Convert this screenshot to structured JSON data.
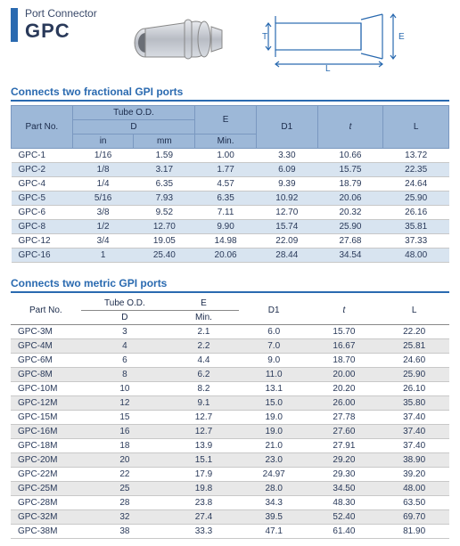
{
  "header": {
    "subtitle": "Port Connector",
    "title": "GPC",
    "bar_color": "#2a6ab0"
  },
  "diagram": {
    "labels": {
      "T": "T",
      "E": "E",
      "L": "L",
      "D1": "D1"
    }
  },
  "table1": {
    "title": "Connects two fractional GPI ports",
    "columns": {
      "part": "Part No.",
      "tube_od": "Tube O.D.",
      "D": "D",
      "in": "in",
      "mm": "mm",
      "E": "E",
      "Emin": "Min.",
      "D1": "D1",
      "t": "t",
      "L": "L"
    },
    "rows": [
      {
        "part": "GPC-1",
        "in": "1/16",
        "mm": "1.59",
        "e": "1.00",
        "d1": "3.30",
        "t": "10.66",
        "l": "13.72"
      },
      {
        "part": "GPC-2",
        "in": "1/8",
        "mm": "3.17",
        "e": "1.77",
        "d1": "6.09",
        "t": "15.75",
        "l": "22.35"
      },
      {
        "part": "GPC-4",
        "in": "1/4",
        "mm": "6.35",
        "e": "4.57",
        "d1": "9.39",
        "t": "18.79",
        "l": "24.64"
      },
      {
        "part": "GPC-5",
        "in": "5/16",
        "mm": "7.93",
        "e": "6.35",
        "d1": "10.92",
        "t": "20.06",
        "l": "25.90"
      },
      {
        "part": "GPC-6",
        "in": "3/8",
        "mm": "9.52",
        "e": "7.11",
        "d1": "12.70",
        "t": "20.32",
        "l": "26.16"
      },
      {
        "part": "GPC-8",
        "in": "1/2",
        "mm": "12.70",
        "e": "9.90",
        "d1": "15.74",
        "t": "25.90",
        "l": "35.81"
      },
      {
        "part": "GPC-12",
        "in": "3/4",
        "mm": "19.05",
        "e": "14.98",
        "d1": "22.09",
        "t": "27.68",
        "l": "37.33"
      },
      {
        "part": "GPC-16",
        "in": "1",
        "mm": "25.40",
        "e": "20.06",
        "d1": "28.44",
        "t": "34.54",
        "l": "48.00"
      }
    ],
    "header_bg": "#9db8d8",
    "alt_bg": "#d8e4f0"
  },
  "table2": {
    "title": "Connects two metric GPI ports",
    "columns": {
      "part": "Part No.",
      "tube_od": "Tube O.D.",
      "D": "D",
      "E": "E",
      "Emin": "Min.",
      "D1": "D1",
      "t": "t",
      "L": "L"
    },
    "rows": [
      {
        "part": "GPC-3M",
        "d": "3",
        "e": "2.1",
        "d1": "6.0",
        "t": "15.70",
        "l": "22.20"
      },
      {
        "part": "GPC-4M",
        "d": "4",
        "e": "2.2",
        "d1": "7.0",
        "t": "16.67",
        "l": "25.81"
      },
      {
        "part": "GPC-6M",
        "d": "6",
        "e": "4.4",
        "d1": "9.0",
        "t": "18.70",
        "l": "24.60"
      },
      {
        "part": "GPC-8M",
        "d": "8",
        "e": "6.2",
        "d1": "11.0",
        "t": "20.00",
        "l": "25.90"
      },
      {
        "part": "GPC-10M",
        "d": "10",
        "e": "8.2",
        "d1": "13.1",
        "t": "20.20",
        "l": "26.10"
      },
      {
        "part": "GPC-12M",
        "d": "12",
        "e": "9.1",
        "d1": "15.0",
        "t": "26.00",
        "l": "35.80"
      },
      {
        "part": "GPC-15M",
        "d": "15",
        "e": "12.7",
        "d1": "19.0",
        "t": "27.78",
        "l": "37.40"
      },
      {
        "part": "GPC-16M",
        "d": "16",
        "e": "12.7",
        "d1": "19.0",
        "t": "27.60",
        "l": "37.40"
      },
      {
        "part": "GPC-18M",
        "d": "18",
        "e": "13.9",
        "d1": "21.0",
        "t": "27.91",
        "l": "37.40"
      },
      {
        "part": "GPC-20M",
        "d": "20",
        "e": "15.1",
        "d1": "23.0",
        "t": "29.20",
        "l": "38.90"
      },
      {
        "part": "GPC-22M",
        "d": "22",
        "e": "17.9",
        "d1": "24.97",
        "t": "29.30",
        "l": "39.20"
      },
      {
        "part": "GPC-25M",
        "d": "25",
        "e": "19.8",
        "d1": "28.0",
        "t": "34.50",
        "l": "48.00"
      },
      {
        "part": "GPC-28M",
        "d": "28",
        "e": "23.8",
        "d1": "34.3",
        "t": "48.30",
        "l": "63.50"
      },
      {
        "part": "GPC-32M",
        "d": "32",
        "e": "27.4",
        "d1": "39.5",
        "t": "52.40",
        "l": "69.70"
      },
      {
        "part": "GPC-38M",
        "d": "38",
        "e": "33.3",
        "d1": "47.1",
        "t": "61.40",
        "l": "81.90"
      }
    ],
    "alt_bg": "#e8e8e8"
  }
}
